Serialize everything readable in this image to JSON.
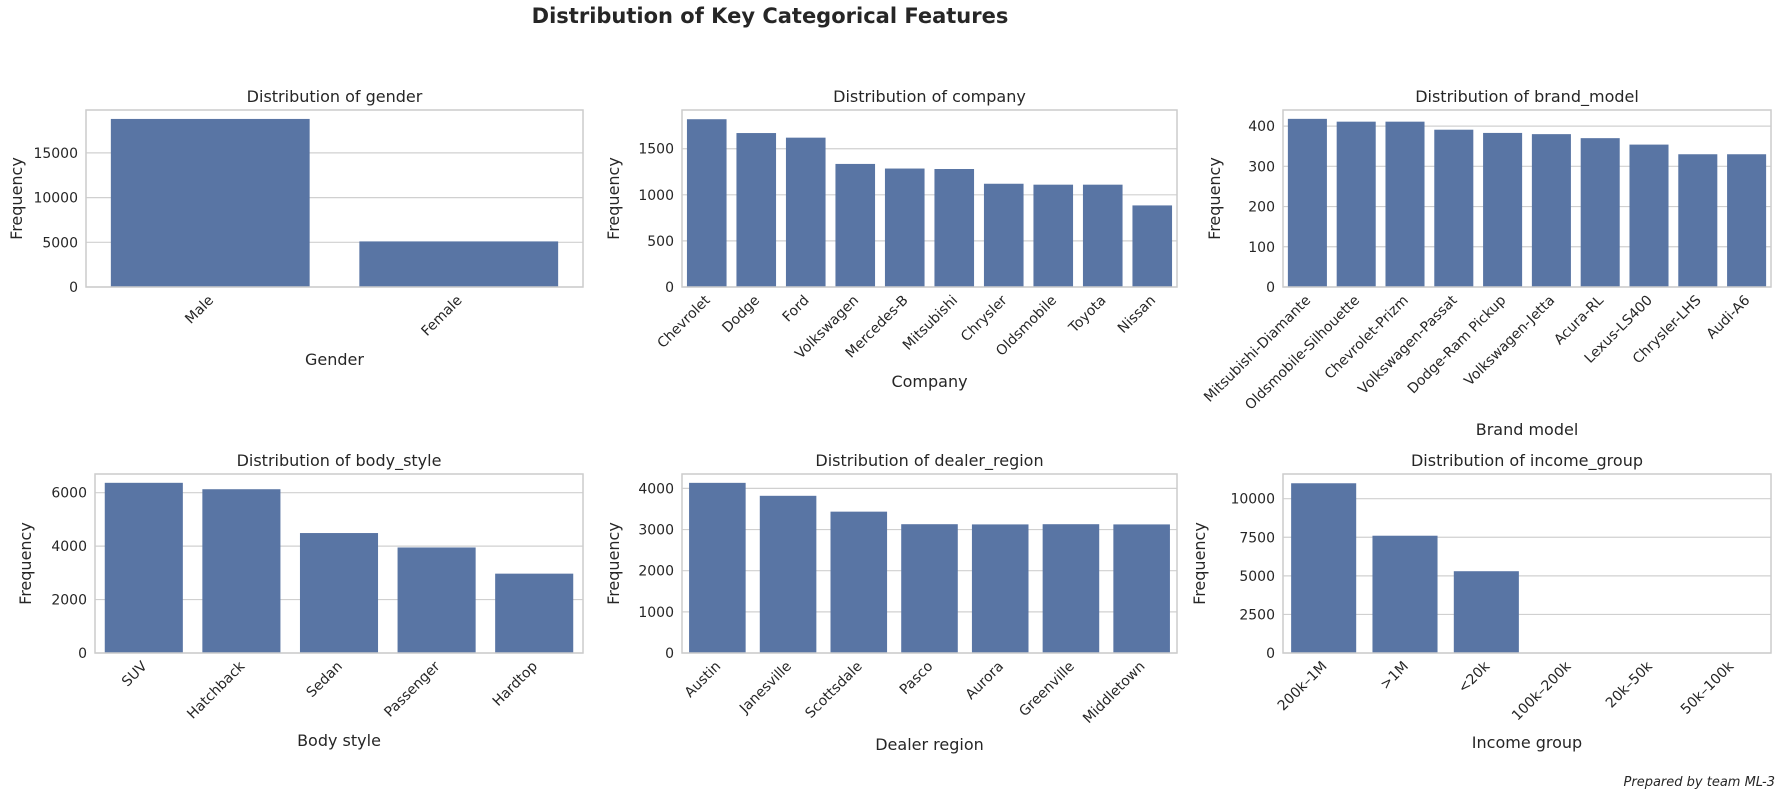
{
  "figure": {
    "title": "Distribution of Key Categorical Features",
    "footer": "Prepared by team ML-3"
  },
  "colors": {
    "bar": "#5975a4",
    "grid": "#d0d0d0",
    "frame": "#cccccc",
    "text": "#262626"
  },
  "chart_data": [
    {
      "type": "bar",
      "title": "Distribution of gender",
      "xlabel": "Gender",
      "ylabel": "Frequency",
      "categories": [
        "Male",
        "Female"
      ],
      "values": [
        18800,
        5100
      ],
      "ylim": [
        0,
        19800
      ],
      "yticks": [
        0,
        5000,
        10000,
        15000
      ],
      "grid": true
    },
    {
      "type": "bar",
      "title": "Distribution of company",
      "xlabel": "Company",
      "ylabel": "Frequency",
      "categories": [
        "Chevrolet",
        "Dodge",
        "Ford",
        "Volkswagen",
        "Mercedes-B",
        "Mitsubishi",
        "Chrysler",
        "Oldsmobile",
        "Toyota",
        "Nissan"
      ],
      "values": [
        1820,
        1670,
        1620,
        1335,
        1285,
        1280,
        1120,
        1110,
        1110,
        885
      ],
      "ylim": [
        0,
        1920
      ],
      "yticks": [
        0,
        500,
        1000,
        1500
      ],
      "grid": true
    },
    {
      "type": "bar",
      "title": "Distribution of brand_model",
      "xlabel": "Brand model",
      "ylabel": "Frequency",
      "categories": [
        "Mitsubishi-Diamante",
        "Oldsmobile-Silhouette",
        "Chevrolet-Prizm",
        "Volkswagen-Passat",
        "Dodge-Ram Pickup",
        "Volkswagen-Jetta",
        "Acura-RL",
        "Lexus-LS400",
        "Chrysler-LHS",
        "Audi-A6"
      ],
      "values": [
        418,
        411,
        411,
        391,
        383,
        380,
        370,
        354,
        330,
        330
      ],
      "ylim": [
        0,
        440
      ],
      "yticks": [
        0,
        100,
        200,
        300,
        400
      ],
      "grid": true
    },
    {
      "type": "bar",
      "title": "Distribution of body_style",
      "xlabel": "Body style",
      "ylabel": "Frequency",
      "categories": [
        "SUV",
        "Hatchback",
        "Sedan",
        "Passenger",
        "Hardtop"
      ],
      "values": [
        6370,
        6130,
        4490,
        3950,
        2970
      ],
      "ylim": [
        0,
        6700
      ],
      "yticks": [
        0,
        2000,
        4000,
        6000
      ],
      "grid": true
    },
    {
      "type": "bar",
      "title": "Distribution of dealer_region",
      "xlabel": "Dealer region",
      "ylabel": "Frequency",
      "categories": [
        "Austin",
        "Janesville",
        "Scottsdale",
        "Pasco",
        "Aurora",
        "Greenville",
        "Middletown"
      ],
      "values": [
        4135,
        3820,
        3435,
        3130,
        3125,
        3130,
        3125
      ],
      "ylim": [
        0,
        4350
      ],
      "yticks": [
        0,
        1000,
        2000,
        3000,
        4000
      ],
      "grid": true
    },
    {
      "type": "bar",
      "title": "Distribution of income_group",
      "xlabel": "Income group",
      "ylabel": "Frequency",
      "categories": [
        "200k–1M",
        ">1M",
        "<20k",
        "100k–200k",
        "20k–50k",
        "50k–100k"
      ],
      "values": [
        11000,
        7600,
        5300,
        0,
        0,
        0
      ],
      "ylim": [
        0,
        11600
      ],
      "yticks": [
        0,
        2500,
        5000,
        7500,
        10000
      ],
      "grid": true
    }
  ]
}
